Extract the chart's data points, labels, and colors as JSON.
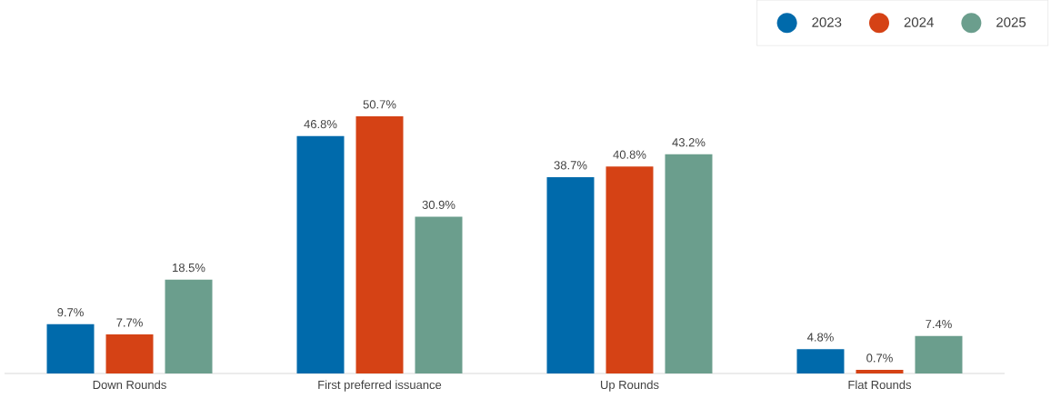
{
  "chart_data": {
    "type": "bar",
    "categories": [
      "Down Rounds",
      "First preferred issuance",
      "Up Rounds",
      "Flat Rounds"
    ],
    "series": [
      {
        "name": "2023",
        "color": "#006aab",
        "values": [
          9.7,
          46.8,
          38.7,
          4.8
        ],
        "value_labels": [
          "9.7%",
          "46.8%",
          "38.7%",
          "4.8%"
        ]
      },
      {
        "name": "2024",
        "color": "#d54215",
        "values": [
          7.7,
          50.7,
          40.8,
          0.7
        ],
        "value_labels": [
          "7.7%",
          "50.7%",
          "40.8%",
          "0.7%"
        ]
      },
      {
        "name": "2025",
        "color": "#6b9e8d",
        "values": [
          18.5,
          30.9,
          43.2,
          7.4
        ],
        "value_labels": [
          "18.5%",
          "30.9%",
          "43.2%",
          "7.4%"
        ]
      }
    ],
    "legend": "top right"
  }
}
